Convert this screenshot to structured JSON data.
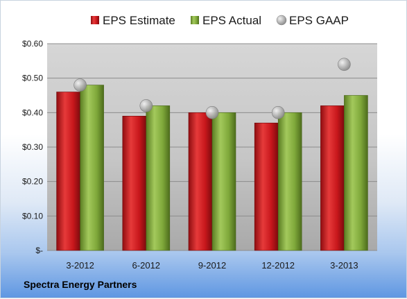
{
  "company": "Spectra Energy Partners",
  "chart_data": {
    "type": "bar",
    "categories": [
      "3-2012",
      "6-2012",
      "9-2012",
      "12-2012",
      "3-2013"
    ],
    "series": [
      {
        "name": "EPS Estimate",
        "type": "bar",
        "color": "#c8171c",
        "values": [
          0.46,
          0.39,
          0.4,
          0.37,
          0.42
        ]
      },
      {
        "name": "EPS Actual",
        "type": "bar",
        "color": "#7fa83a",
        "values": [
          0.48,
          0.42,
          0.4,
          0.4,
          0.45
        ]
      },
      {
        "name": "EPS GAAP",
        "type": "scatter",
        "color": "#b0b0b0",
        "values": [
          0.48,
          0.42,
          0.4,
          0.4,
          0.54
        ]
      }
    ],
    "ylim": [
      0,
      0.6
    ],
    "yticks": [
      {
        "value": 0,
        "label": "$-"
      },
      {
        "value": 0.1,
        "label": "$0.10"
      },
      {
        "value": 0.2,
        "label": "$0.20"
      },
      {
        "value": 0.3,
        "label": "$0.30"
      },
      {
        "value": 0.4,
        "label": "$0.40"
      },
      {
        "value": 0.5,
        "label": "$0.50"
      },
      {
        "value": 0.6,
        "label": "$0.60"
      }
    ],
    "grid": true,
    "legend": "top"
  }
}
